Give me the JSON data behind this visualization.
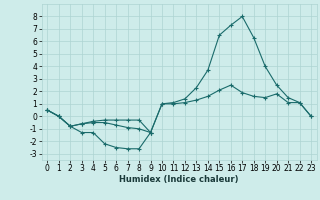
{
  "xlabel": "Humidex (Indice chaleur)",
  "background_color": "#ceecea",
  "grid_color": "#aed4d2",
  "line_color": "#1a6b6b",
  "x": [
    0,
    1,
    2,
    3,
    4,
    5,
    6,
    7,
    8,
    9,
    10,
    11,
    12,
    13,
    14,
    15,
    16,
    17,
    18,
    19,
    20,
    21,
    22,
    23
  ],
  "line1": [
    0.5,
    0.0,
    -0.8,
    -1.3,
    -1.3,
    -2.2,
    -2.5,
    -2.6,
    -2.6,
    -1.3,
    null,
    null,
    null,
    null,
    null,
    null,
    null,
    null,
    null,
    null,
    null,
    null,
    null,
    null
  ],
  "line2": [
    0.5,
    0.0,
    -0.8,
    -0.6,
    -0.5,
    -0.5,
    -0.7,
    -0.9,
    -1.0,
    -1.3,
    1.0,
    1.0,
    1.1,
    1.3,
    1.6,
    2.1,
    2.5,
    1.9,
    1.6,
    1.5,
    1.8,
    1.1,
    1.1,
    0.0
  ],
  "line3": [
    0.5,
    0.0,
    -0.8,
    -0.6,
    -0.4,
    -0.3,
    -0.3,
    -0.3,
    -0.3,
    -1.3,
    1.0,
    1.1,
    1.4,
    2.3,
    3.7,
    6.5,
    7.3,
    8.0,
    6.3,
    4.0,
    2.5,
    1.5,
    1.1,
    0.0
  ],
  "ylim": [
    -3.5,
    9.0
  ],
  "xlim": [
    -0.5,
    23.5
  ],
  "yticks": [
    -3,
    -2,
    -1,
    0,
    1,
    2,
    3,
    4,
    5,
    6,
    7,
    8
  ],
  "xticks": [
    0,
    1,
    2,
    3,
    4,
    5,
    6,
    7,
    8,
    9,
    10,
    11,
    12,
    13,
    14,
    15,
    16,
    17,
    18,
    19,
    20,
    21,
    22,
    23
  ],
  "tick_fontsize": 5.5,
  "xlabel_fontsize": 6.0
}
